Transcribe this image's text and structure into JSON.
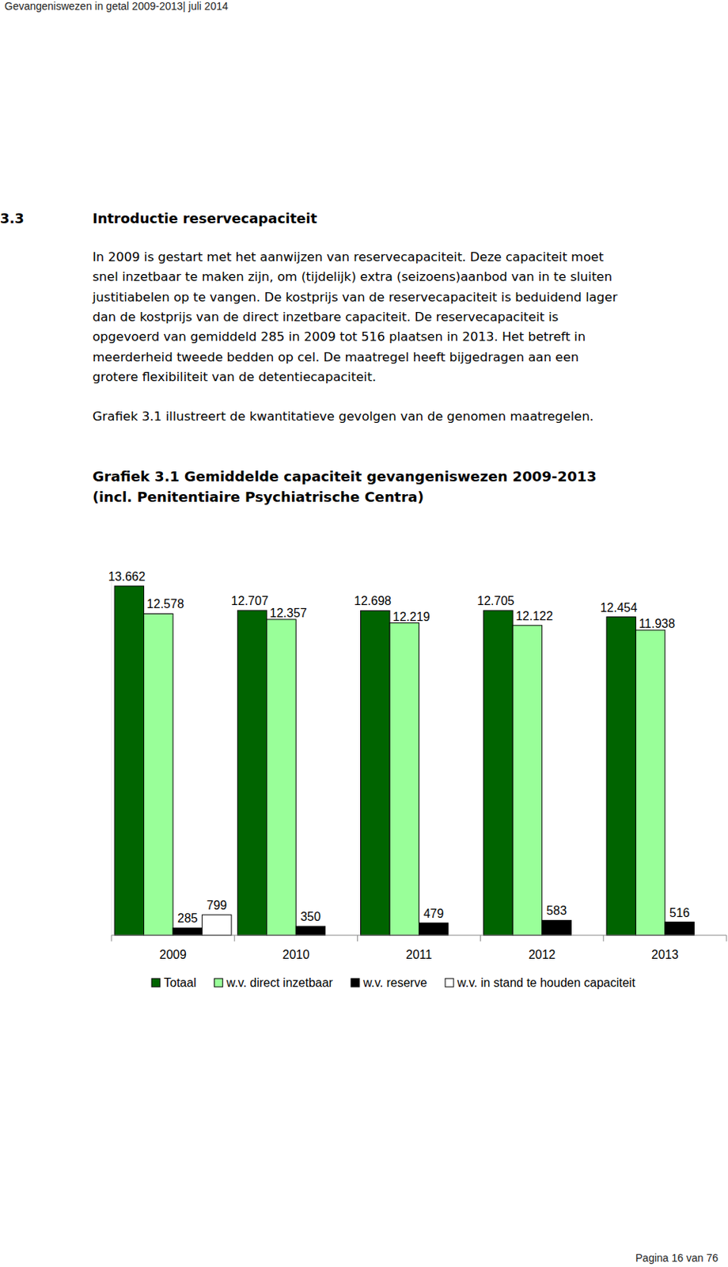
{
  "header": "Gevangeniswezen in getal 2009-2013| juli 2014",
  "section": {
    "number": "3.3",
    "title": "Introductie reservecapaciteit"
  },
  "paragraphs": [
    [
      "In 2009 is gestart met het aanwijzen van reservecapaciteit. Deze capaciteit moet",
      "snel inzetbaar te maken zijn, om (tijdelijk) extra (seizoens)aanbod van in te sluiten",
      "justitiabelen op te vangen. De kostprijs van de reservecapaciteit is beduidend lager",
      "dan de kostprijs van de direct inzetbare capaciteit. De reservecapaciteit is",
      "opgevoerd van gemiddeld 285 in 2009 tot 516 plaatsen in 2013. Het betreft in",
      "meerderheid tweede bedden op cel. De maatregel heeft bijgedragen aan een",
      "grotere flexibiliteit van de detentiecapaciteit."
    ],
    [
      "Grafiek 3.1 illustreert de kwantitatieve gevolgen van de genomen maatregelen."
    ]
  ],
  "chart_data": {
    "type": "bar",
    "title": [
      "Grafiek 3.1 Gemiddelde capaciteit gevangeniswezen 2009-2013",
      "(incl. Penitentiaire Psychiatrische Centra)"
    ],
    "categories": [
      "2009",
      "2010",
      "2011",
      "2012",
      "2013"
    ],
    "series": [
      {
        "name": "Totaal",
        "color": "#006400",
        "values": [
          13662,
          12707,
          12698,
          12705,
          12454
        ],
        "value_labels": [
          "13.662",
          "12.707",
          "12.698",
          "12.705",
          "12.454"
        ]
      },
      {
        "name": "w.v. direct inzetbaar",
        "color": "#99ff99",
        "values": [
          12578,
          12357,
          12219,
          12122,
          11938
        ],
        "value_labels": [
          "12.578",
          "12.357",
          "12.219",
          "12.122",
          "11.938"
        ]
      },
      {
        "name": "w.v. reserve",
        "color": "#000000",
        "values": [
          285,
          350,
          479,
          583,
          516
        ]
      },
      {
        "name": "w.v. in stand te houden capaciteit",
        "color": "#ffffff",
        "values": [
          799,
          null,
          null,
          null,
          null
        ]
      }
    ],
    "ylim": [
      0,
      14000
    ],
    "data_labels": true,
    "tick_labels": "x",
    "legend": "bottom"
  },
  "footer": "Pagina 16 van 76"
}
